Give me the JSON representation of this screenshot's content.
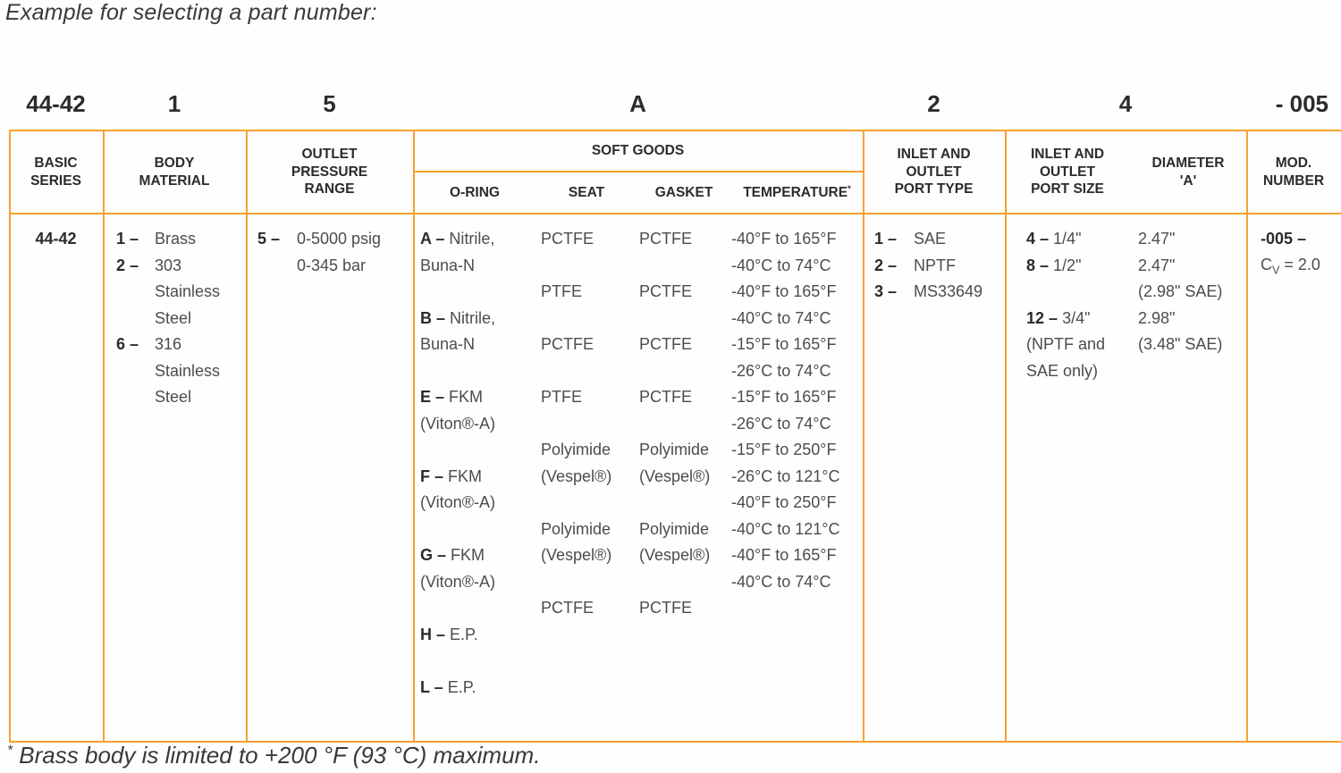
{
  "title": "Example for selecting a part number:",
  "pn": {
    "basic": "44-42",
    "body": "1",
    "pressure": "5",
    "soft": "A",
    "type": "2",
    "size": "4",
    "mod": "- 005"
  },
  "head": {
    "basic": "BASIC SERIES",
    "body": "BODY MATERIAL",
    "pressure": "OUTLET PRESSURE RANGE",
    "soft": "SOFT GOODS",
    "oring": "O-RING",
    "seat": "SEAT",
    "gasket": "GASKET",
    "temp": "TEMPERATURE",
    "temp_star": "*",
    "type": "INLET AND OUTLET PORT TYPE",
    "size": "INLET AND OUTLET PORT SIZE",
    "dia": "DIAMETER 'A'",
    "mod": "MOD. NUMBER"
  },
  "body": {
    "basic": "44-42",
    "material": [
      {
        "k": "1 –",
        "t": "Brass"
      },
      {
        "k": "2 –",
        "t": "303"
      },
      {
        "t": "Stainless"
      },
      {
        "t": "Steel"
      },
      {
        "k": "6 –",
        "t": "316"
      },
      {
        "t": "Stainless"
      },
      {
        "t": "Steel"
      }
    ],
    "pressure": [
      {
        "k": "5 –",
        "t": "0-5000 psig"
      },
      {
        "t": "0-345 bar"
      }
    ],
    "oring": [
      {
        "k": "A –",
        "t": "Nitrile,"
      },
      {
        "t": "Buna-N"
      },
      null,
      {
        "k": "B –",
        "t": "Nitrile,"
      },
      {
        "t": "Buna-N"
      },
      null,
      {
        "k": "E –",
        "t": "FKM"
      },
      {
        "t": "(Viton®-A)"
      },
      null,
      {
        "k": "F –",
        "t": "FKM"
      },
      {
        "t": "(Viton®-A)"
      },
      null,
      {
        "k": "G –",
        "t": "FKM"
      },
      {
        "t": "(Viton®-A)"
      },
      null,
      {
        "k": "H –",
        "t": "E.P."
      },
      null,
      {
        "k": "L –",
        "t": "E.P."
      }
    ],
    "seat": [
      "PCTFE",
      "",
      "PTFE",
      "",
      "PCTFE",
      "",
      "PTFE",
      "",
      "Polyimide",
      "(Vespel®)",
      "",
      "Polyimide",
      "(Vespel®)",
      "",
      "PCTFE",
      "",
      "",
      ""
    ],
    "gasket": [
      "PCTFE",
      "",
      "PCTFE",
      "",
      "PCTFE",
      "",
      "PCTFE",
      "",
      "Polyimide",
      "(Vespel®)",
      "",
      "Polyimide",
      "(Vespel®)",
      "",
      "PCTFE",
      "",
      "",
      ""
    ],
    "temp": [
      "-40°F to 165°F",
      "-40°C to 74°C",
      "-40°F to 165°F",
      "-40°C to 74°C",
      "-15°F to 165°F",
      "-26°C to 74°C",
      "-15°F to 165°F",
      "-26°C to 74°C",
      "-15°F to 250°F",
      "-26°C to 121°C",
      "-40°F to 250°F",
      "-40°C to 121°C",
      "-40°F to 165°F",
      "-40°C to 74°C",
      "",
      "",
      "",
      ""
    ],
    "type": [
      {
        "k": "1 –",
        "t": "SAE"
      },
      {
        "k": "2 –",
        "t": "NPTF"
      },
      {
        "k": "3 –",
        "t": "MS33649"
      }
    ],
    "size_a": [
      {
        "k": "4 –",
        "t": "1/4\""
      },
      {
        "k": "8 –",
        "t": "1/2\""
      },
      null,
      {
        "k": "12 –",
        "t": "3/4\""
      },
      {
        "t": "(NPTF and"
      },
      {
        "t": "SAE only)"
      }
    ],
    "size_b": [
      "2.47\"",
      "2.47\"",
      "(2.98\" SAE)",
      "2.98\"",
      "(3.48\" SAE)",
      ""
    ],
    "mod": [
      {
        "k": "-005 –"
      }
    ]
  },
  "mod_cv": {
    "c": "C",
    "sub": "V",
    "eq": " = 2.0"
  },
  "foot": {
    "star": "*",
    "text": " Brass body is limited to +200 °F (93 °C) maximum."
  },
  "colors": {
    "border": "#F5A22B"
  }
}
